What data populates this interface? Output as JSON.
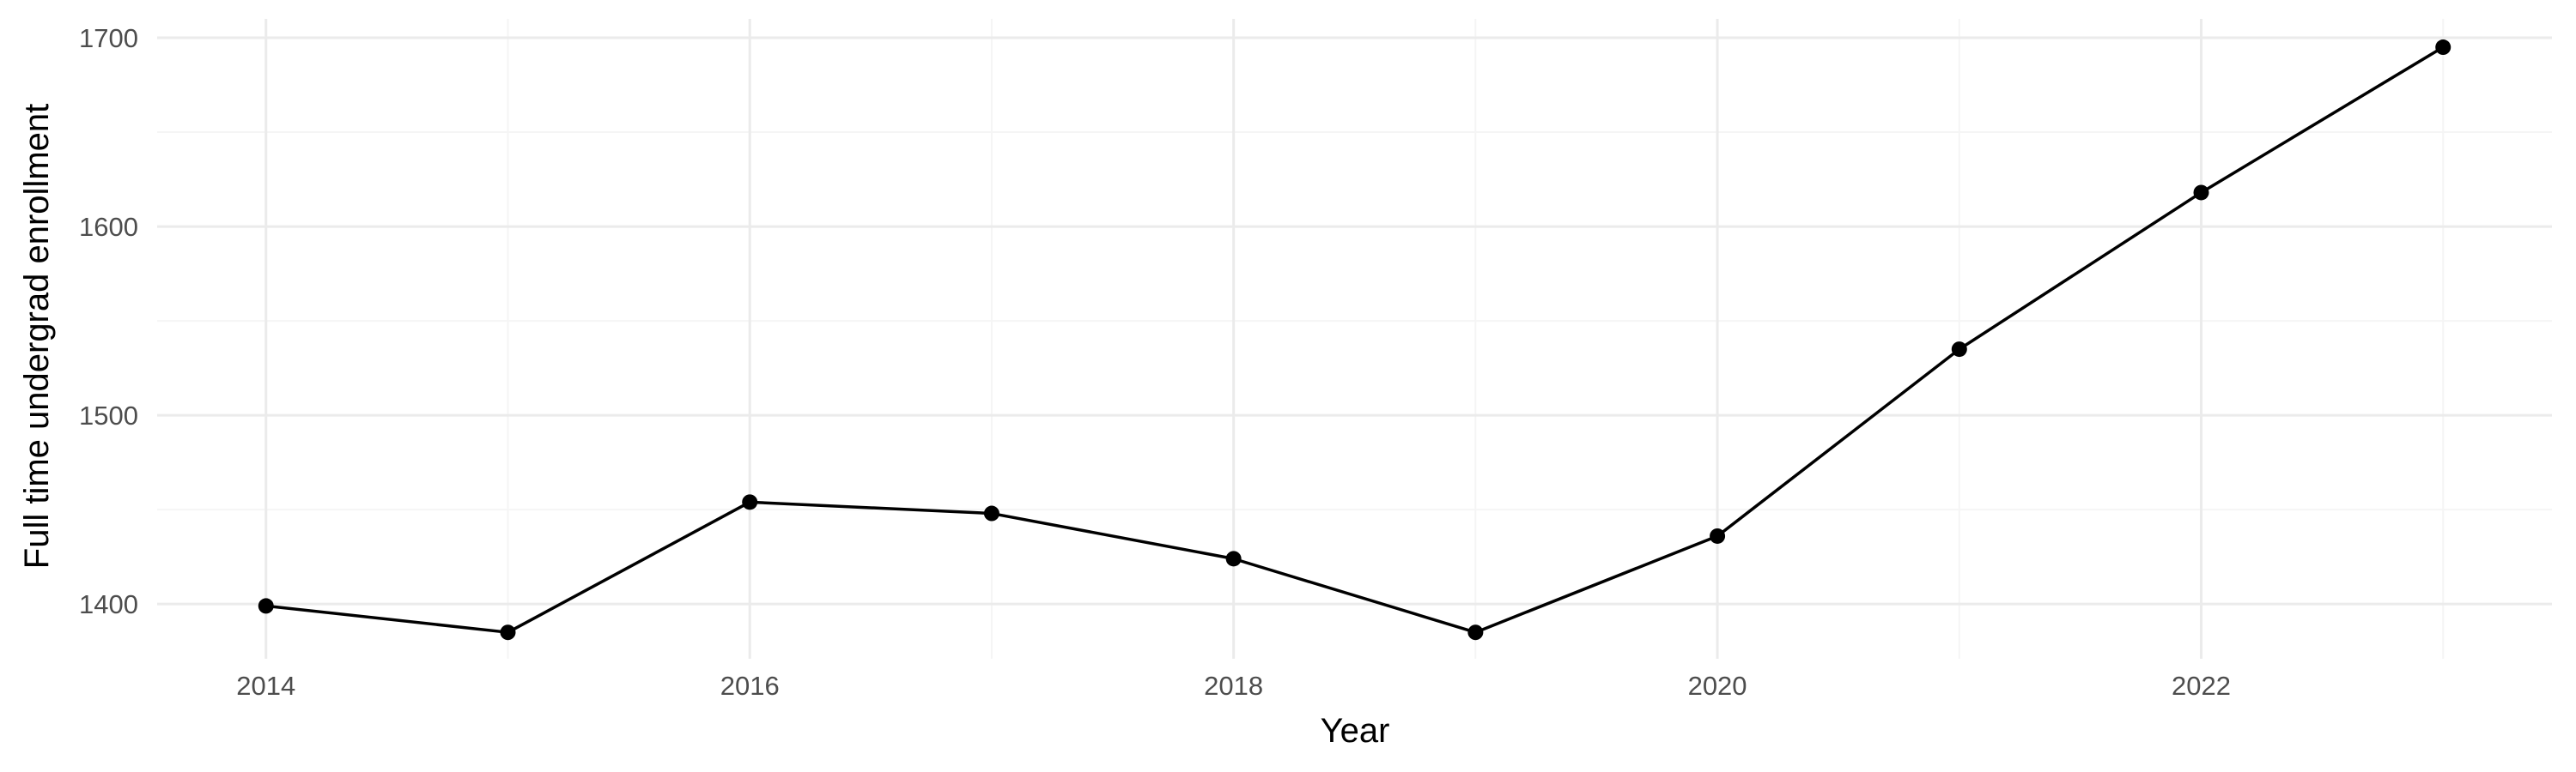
{
  "chart_data": {
    "type": "line",
    "title": "",
    "xlabel": "Year",
    "ylabel": "Full time undergrad enrollment",
    "x": [
      2014,
      2015,
      2016,
      2017,
      2018,
      2019,
      2020,
      2021,
      2022,
      2023
    ],
    "series": [
      {
        "values": [
          1399,
          1385,
          1454,
          1448,
          1424,
          1385,
          1436,
          1535,
          1618,
          1695
        ],
        "color": "#000000"
      }
    ],
    "xlim": [
      2013.55,
      2023.45
    ],
    "ylim": [
      1371,
      1710
    ],
    "x_major_ticks": [
      2014,
      2016,
      2018,
      2020,
      2022
    ],
    "x_minor_ticks": [
      2015,
      2017,
      2019,
      2021,
      2023
    ],
    "y_major_ticks": [
      1400,
      1500,
      1600,
      1700
    ],
    "y_minor_ticks": [
      1450,
      1550,
      1650
    ],
    "grid": true,
    "legend": "none",
    "background": "#ffffff"
  }
}
